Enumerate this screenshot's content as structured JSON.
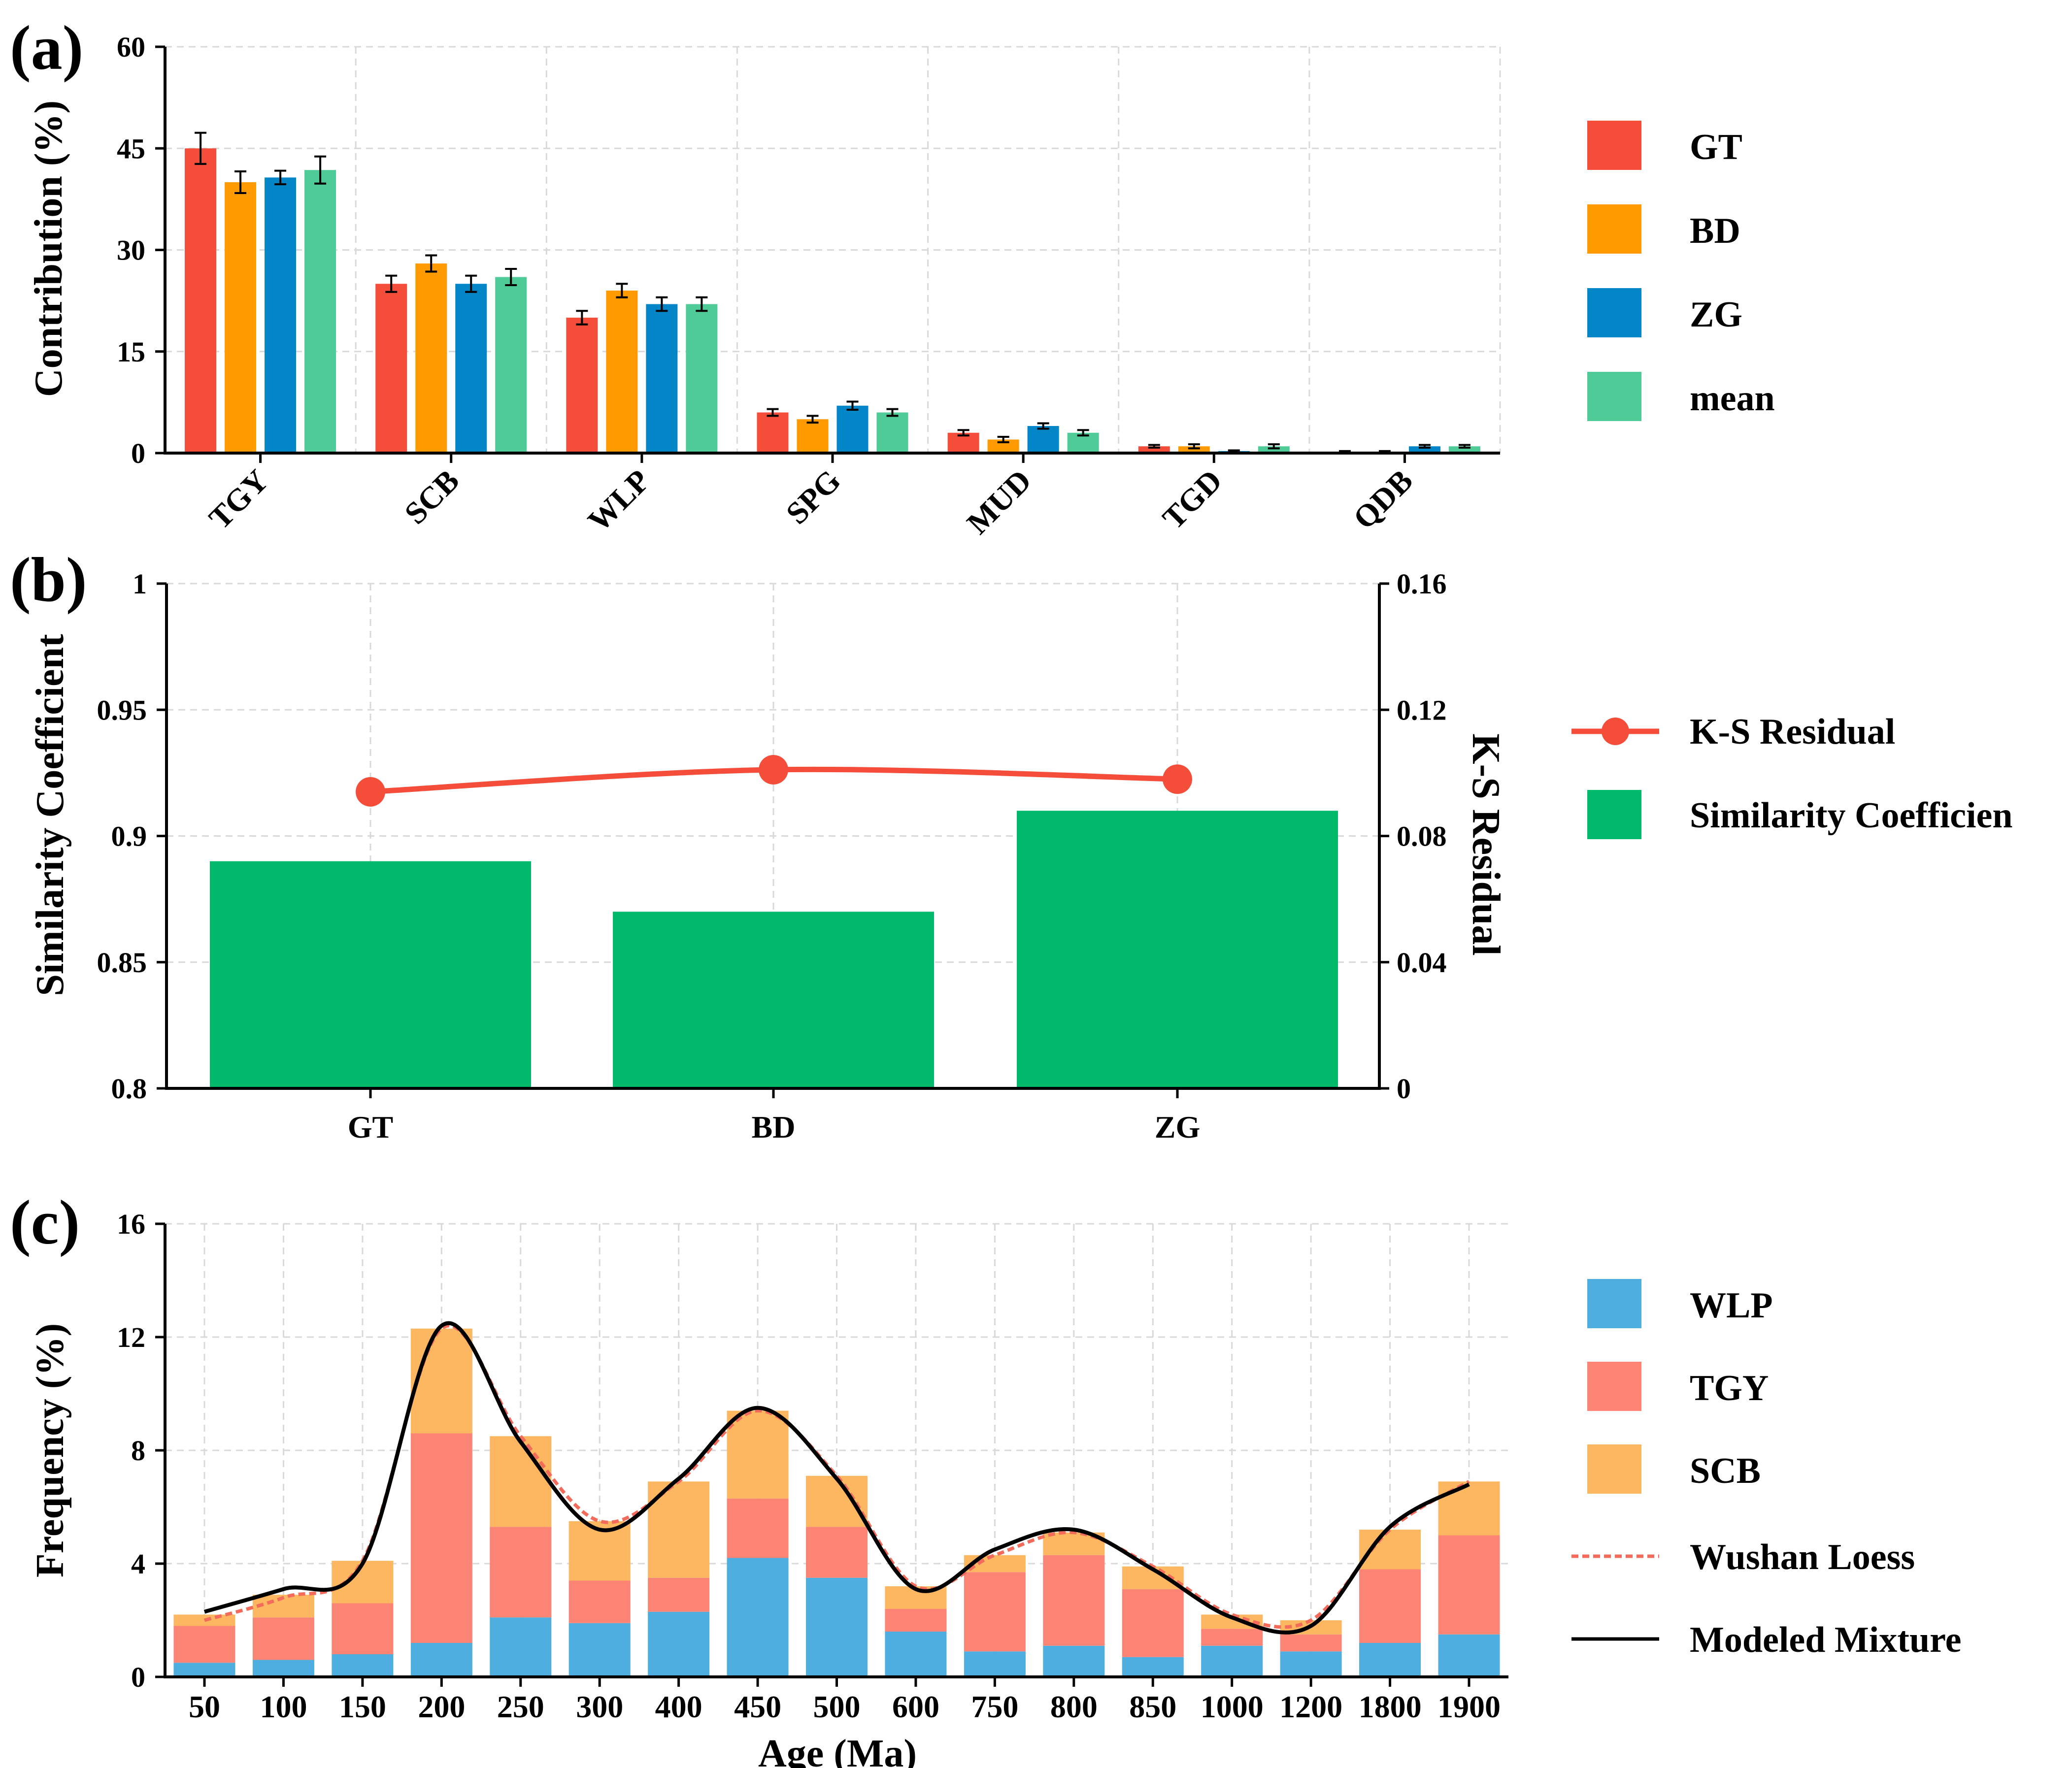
{
  "chart_data": [
    {
      "panel": "(a)",
      "type": "bar",
      "categories": [
        "TGY",
        "SCB",
        "WLP",
        "SPG",
        "MUD",
        "TGD",
        "QDB"
      ],
      "series": [
        {
          "name": "GT",
          "color": "#F44E3B",
          "values": [
            45.0,
            25.0,
            20.0,
            6.0,
            3.0,
            1.0,
            0.2
          ],
          "errors": [
            2.3,
            1.2,
            1.0,
            0.5,
            0.4,
            0.2,
            0.1
          ]
        },
        {
          "name": "BD",
          "color": "#FF9A00",
          "values": [
            40.0,
            28.0,
            24.0,
            5.0,
            2.0,
            1.0,
            0.2
          ],
          "errors": [
            1.6,
            1.2,
            1.0,
            0.5,
            0.4,
            0.3,
            0.1
          ]
        },
        {
          "name": "ZG",
          "color": "#0386C8",
          "values": [
            40.7,
            25.0,
            22.0,
            7.0,
            4.0,
            0.3,
            1.0
          ],
          "errors": [
            1.0,
            1.2,
            1.0,
            0.6,
            0.4,
            0.1,
            0.2
          ]
        },
        {
          "name": "mean",
          "color": "#4FCB97",
          "values": [
            41.8,
            26.0,
            22.0,
            6.0,
            3.0,
            1.0,
            1.0
          ],
          "errors": [
            2.0,
            1.2,
            1.0,
            0.5,
            0.4,
            0.3,
            0.2
          ]
        }
      ],
      "ylabel": "Contribution (%)",
      "yticks": [
        "0",
        "15",
        "30",
        "45",
        "60"
      ],
      "ylim": [
        0,
        60
      ],
      "grid": true,
      "legend": "right"
    },
    {
      "panel": "(b)",
      "type": "bar+line",
      "categories": [
        "GT",
        "BD",
        "ZG"
      ],
      "bars": {
        "name": "Similarity Coefficient",
        "legend_label": "Similarity Coefficien",
        "color": "#00B96B",
        "values": [
          0.89,
          0.87,
          0.91
        ]
      },
      "line": {
        "name": "K-S Residual",
        "color": "#F44E3B",
        "values": [
          0.094,
          0.101,
          0.098
        ]
      },
      "ylabel_left": "Similarity Coefficient",
      "ylabel_right": "K-S Residual",
      "yticks_left": [
        "0.8",
        "0.85",
        "0.9",
        "0.95",
        "1"
      ],
      "yticks_right": [
        "0",
        "0.04",
        "0.08",
        "0.12",
        "0.16"
      ],
      "ylim_left": [
        0.8,
        1.0
      ],
      "ylim_right": [
        0,
        0.16
      ],
      "grid": true,
      "legend": "right"
    },
    {
      "panel": "(c)",
      "type": "stacked bar+line",
      "categories": [
        "50",
        "100",
        "150",
        "200",
        "250",
        "300",
        "400",
        "450",
        "500",
        "600",
        "750",
        "800",
        "850",
        "1000",
        "1200",
        "1800",
        "1900"
      ],
      "series": [
        {
          "name": "WLP",
          "color": "#4DAEDF",
          "values": [
            0.5,
            0.6,
            0.8,
            1.2,
            2.1,
            1.9,
            2.3,
            4.2,
            3.5,
            1.6,
            0.9,
            1.1,
            0.7,
            1.1,
            0.9,
            1.2,
            1.5
          ]
        },
        {
          "name": "TGY",
          "color": "#FB8475",
          "values": [
            1.3,
            1.5,
            1.8,
            7.4,
            3.2,
            1.5,
            1.2,
            2.1,
            1.8,
            0.8,
            2.8,
            3.2,
            2.4,
            0.6,
            0.6,
            2.6,
            3.5
          ]
        },
        {
          "name": "SCB",
          "color": "#FDB760",
          "values": [
            0.4,
            0.8,
            1.5,
            3.7,
            3.2,
            2.1,
            3.4,
            3.1,
            1.8,
            0.8,
            0.6,
            0.8,
            0.8,
            0.5,
            0.5,
            1.4,
            1.9
          ]
        }
      ],
      "lines": [
        {
          "name": "Wushan Loess",
          "style": "dashed",
          "color": "#F26B5B",
          "values": [
            2.0,
            2.8,
            4.1,
            12.3,
            8.5,
            5.5,
            6.9,
            9.4,
            7.1,
            3.2,
            4.3,
            5.1,
            3.9,
            2.2,
            2.0,
            5.2,
            6.9
          ]
        },
        {
          "name": "Modeled Mixture",
          "style": "solid",
          "color": "#000000",
          "values": [
            2.3,
            3.1,
            4.0,
            12.4,
            8.3,
            5.2,
            7.0,
            9.5,
            7.0,
            3.1,
            4.5,
            5.2,
            3.8,
            2.1,
            1.8,
            5.3,
            6.8
          ]
        }
      ],
      "xlabel": "Age (Ma)",
      "ylabel": "Frequency (%)",
      "yticks": [
        "0",
        "4",
        "8",
        "12",
        "16"
      ],
      "ylim": [
        0,
        16
      ],
      "grid": true,
      "legend": "right"
    }
  ]
}
